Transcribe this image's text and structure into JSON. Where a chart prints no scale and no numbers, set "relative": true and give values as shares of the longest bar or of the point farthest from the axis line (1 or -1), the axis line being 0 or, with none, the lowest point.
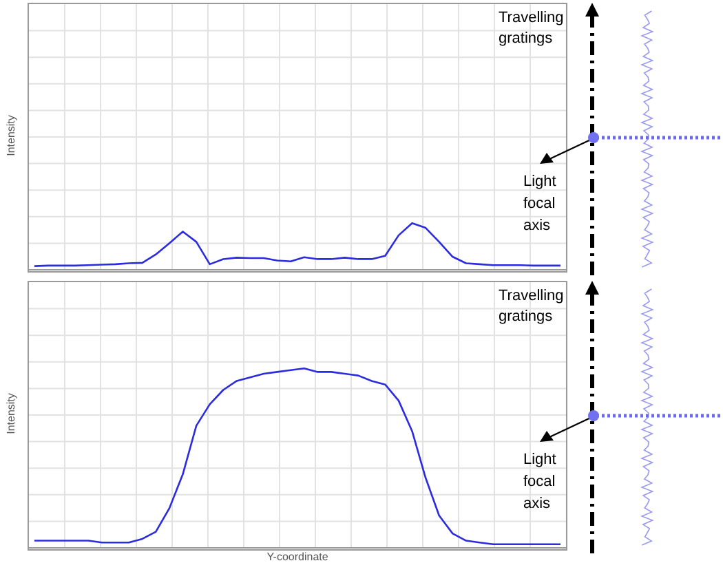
{
  "chart_data": [
    {
      "type": "line",
      "ylabel": "Intensity",
      "relative": true,
      "grid": true,
      "tick_labels": false,
      "marker": "none",
      "annotations": [
        "Travelling gratings",
        "Light focal axis"
      ],
      "categories": [
        null,
        null,
        null,
        null,
        null,
        null,
        null,
        null,
        null,
        null,
        null,
        null,
        null,
        null,
        null,
        null,
        null,
        null,
        null,
        null,
        null,
        null,
        null,
        null,
        null,
        null,
        null,
        null,
        null,
        null,
        null,
        null,
        null,
        null,
        null,
        null,
        null,
        null,
        null,
        null
      ],
      "series": [
        {
          "color": "#2b2be0",
          "values": [
            0.08,
            0.09,
            0.09,
            0.09,
            0.1,
            0.11,
            0.12,
            0.14,
            0.15,
            0.33,
            0.57,
            0.82,
            0.6,
            0.12,
            0.23,
            0.26,
            0.25,
            0.25,
            0.2,
            0.18,
            0.27,
            0.23,
            0.23,
            0.26,
            0.23,
            0.23,
            0.3,
            0.74,
            1,
            0.9,
            0.6,
            0.28,
            0.14,
            0.12,
            0.1,
            0.1,
            0.1,
            0.09,
            0.09,
            0.09
          ]
        }
      ]
    },
    {
      "type": "line",
      "ylabel": "Intensity",
      "xlabel": "Y-coordinate",
      "relative": true,
      "grid": true,
      "tick_labels": false,
      "marker": "none",
      "annotations": [
        "Travelling gratings",
        "Light focal axis"
      ],
      "categories": [
        null,
        null,
        null,
        null,
        null,
        null,
        null,
        null,
        null,
        null,
        null,
        null,
        null,
        null,
        null,
        null,
        null,
        null,
        null,
        null,
        null,
        null,
        null,
        null,
        null,
        null,
        null,
        null,
        null,
        null,
        null,
        null,
        null,
        null,
        null,
        null,
        null,
        null,
        null,
        null
      ],
      "series": [
        {
          "color": "#2b2be0",
          "values": [
            0.04,
            0.04,
            0.04,
            0.04,
            0.04,
            0.03,
            0.03,
            0.03,
            0.05,
            0.09,
            0.22,
            0.41,
            0.68,
            0.8,
            0.88,
            0.93,
            0.95,
            0.97,
            0.98,
            0.99,
            1,
            0.98,
            0.98,
            0.97,
            0.96,
            0.93,
            0.91,
            0.82,
            0.65,
            0.39,
            0.18,
            0.08,
            0.04,
            0.03,
            0.02,
            0.02,
            0.02,
            0.02,
            0.02,
            0.02
          ]
        }
      ]
    }
  ]
}
